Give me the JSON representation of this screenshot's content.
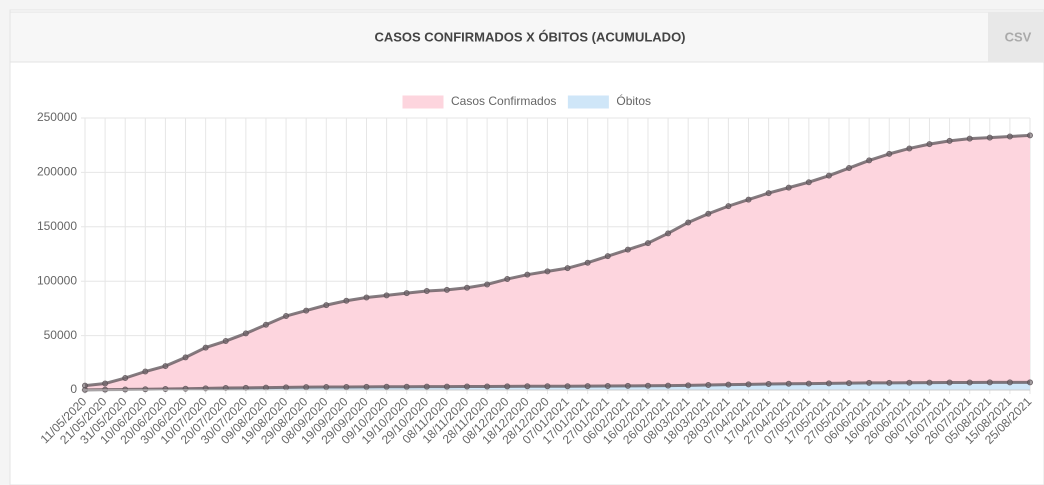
{
  "header": {
    "title": "CASOS CONFIRMADOS X ÓBITOS (ACUMULADO)",
    "button": "CSV"
  },
  "chart_data": {
    "type": "area",
    "categories": [
      "11/05/2020",
      "21/05/2020",
      "31/05/2020",
      "10/06/2020",
      "20/06/2020",
      "30/06/2020",
      "10/07/2020",
      "20/07/2020",
      "30/07/2020",
      "09/08/2020",
      "19/08/2020",
      "29/08/2020",
      "08/09/2020",
      "19/09/2020",
      "29/09/2020",
      "09/10/2020",
      "19/10/2020",
      "29/10/2020",
      "08/11/2020",
      "18/11/2020",
      "28/11/2020",
      "08/12/2020",
      "18/12/2020",
      "28/12/2020",
      "07/01/2021",
      "17/01/2021",
      "27/01/2021",
      "06/02/2021",
      "16/02/2021",
      "26/02/2021",
      "08/03/2021",
      "18/03/2021",
      "28/03/2021",
      "07/04/2021",
      "17/04/2021",
      "27/04/2021",
      "07/05/2021",
      "17/05/2021",
      "27/05/2021",
      "06/06/2021",
      "16/06/2021",
      "26/06/2021",
      "06/07/2021",
      "16/07/2021",
      "26/07/2021",
      "05/08/2021",
      "15/08/2021",
      "25/08/2021"
    ],
    "series": [
      {
        "name": "Casos Confirmados",
        "color": "#fdd5de",
        "values": [
          4000,
          6000,
          11000,
          17000,
          22000,
          30000,
          39000,
          45000,
          52000,
          60000,
          68000,
          73000,
          78000,
          82000,
          85000,
          87000,
          89000,
          91000,
          92000,
          94000,
          97000,
          102000,
          106000,
          109000,
          112000,
          117000,
          123000,
          129000,
          135000,
          144000,
          154000,
          162000,
          169000,
          175000,
          181000,
          186000,
          191000,
          197000,
          204000,
          211000,
          217000,
          222000,
          226000,
          229000,
          231000,
          232000,
          233000,
          234000
        ]
      },
      {
        "name": "Óbitos",
        "color": "#cfe6f8",
        "values": [
          150,
          300,
          500,
          700,
          900,
          1200,
          1500,
          1800,
          2000,
          2200,
          2400,
          2600,
          2700,
          2800,
          2900,
          3000,
          3000,
          3100,
          3100,
          3200,
          3200,
          3300,
          3400,
          3400,
          3500,
          3600,
          3700,
          3800,
          3900,
          4000,
          4300,
          4600,
          4900,
          5200,
          5500,
          5700,
          5900,
          6100,
          6300,
          6500,
          6600,
          6700,
          6800,
          6900,
          6900,
          7000,
          7000,
          7000
        ]
      }
    ],
    "ylim": [
      0,
      250000
    ],
    "yticks": [
      0,
      50000,
      100000,
      150000,
      200000,
      250000
    ],
    "grid": true,
    "legend": "top"
  }
}
